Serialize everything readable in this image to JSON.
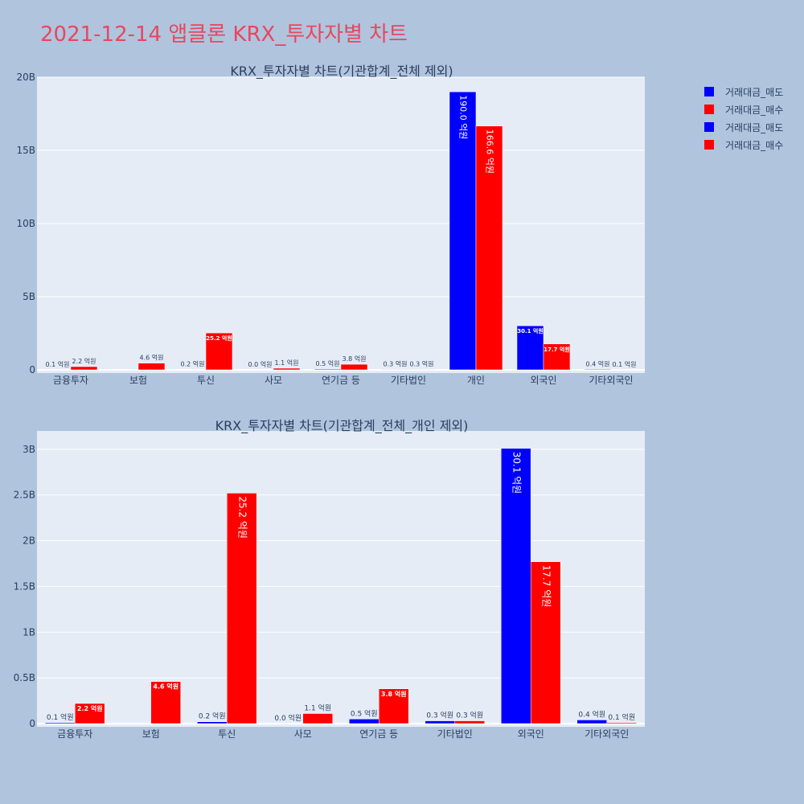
{
  "page": {
    "title": "2021-12-14 앱클론 KRX_투자자별 차트"
  },
  "colors": {
    "background": "#b0c4de",
    "plot_bg": "#e5ecf6",
    "grid": "#ffffff",
    "sell": "#0000ff",
    "buy": "#ff0000",
    "title": "#e8475f",
    "text": "#2a3f5f"
  },
  "legend": {
    "placement": "top-right",
    "items": [
      {
        "label": "거래대금_매도",
        "color": "#0000ff"
      },
      {
        "label": "거래대금_매수",
        "color": "#ff0000"
      },
      {
        "label": "거래대금_매도",
        "color": "#0000ff"
      },
      {
        "label": "거래대금_매수",
        "color": "#ff0000"
      }
    ]
  },
  "chart_data": [
    {
      "type": "bar",
      "title": "KRX_투자자별 차트(기관합계_전체 제외)",
      "categories": [
        "금융투자",
        "보험",
        "투신",
        "사모",
        "연기금 등",
        "기타법인",
        "개인",
        "외국인",
        "기타외국인"
      ],
      "ylim": [
        0,
        20000000000
      ],
      "ytick_values": [
        0,
        5000000000,
        10000000000,
        15000000000,
        20000000000
      ],
      "ytick_labels": [
        "0",
        "5B",
        "10B",
        "15B",
        "20B"
      ],
      "grid": true,
      "series": [
        {
          "name": "거래대금_매도",
          "color": "#0000ff",
          "values": [
            10000000,
            0,
            20000000,
            0,
            50000000,
            30000000,
            19000000000,
            3010000000,
            40000000
          ],
          "labels": [
            "0.1 억원",
            "",
            "0.2 억원",
            "0.0 억원",
            "0.5 억원",
            "0.3 억원",
            "190.0 억원",
            "30.1 억원",
            "0.4 억원"
          ]
        },
        {
          "name": "거래대금_매수",
          "color": "#ff0000",
          "values": [
            220000000,
            460000000,
            2520000000,
            110000000,
            380000000,
            30000000,
            16660000000,
            1770000000,
            10000000
          ],
          "labels": [
            "2.2 억원",
            "4.6 억원",
            "25.2 억원",
            "1.1 억원",
            "3.8 억원",
            "0.3 억원",
            "166.6 억원",
            "17.7 억원",
            "0.1 억원"
          ]
        }
      ]
    },
    {
      "type": "bar",
      "title": "KRX_투자자별 차트(기관합계_전체_개인 제외)",
      "categories": [
        "금융투자",
        "보험",
        "투신",
        "사모",
        "연기금 등",
        "기타법인",
        "외국인",
        "기타외국인"
      ],
      "ylim": [
        0,
        3200000000
      ],
      "ytick_values": [
        0,
        500000000,
        1000000000,
        1500000000,
        2000000000,
        2500000000,
        3000000000
      ],
      "ytick_labels": [
        "0",
        "0.5B",
        "1B",
        "1.5B",
        "2B",
        "2.5B",
        "3B"
      ],
      "grid": true,
      "series": [
        {
          "name": "거래대금_매도",
          "color": "#0000ff",
          "values": [
            10000000,
            0,
            20000000,
            0,
            50000000,
            30000000,
            3010000000,
            40000000
          ],
          "labels": [
            "0.1 억원",
            "",
            "0.2 억원",
            "0.0 억원",
            "0.5 억원",
            "0.3 억원",
            "30.1 억원",
            "0.4 억원"
          ]
        },
        {
          "name": "거래대금_매수",
          "color": "#ff0000",
          "values": [
            220000000,
            460000000,
            2520000000,
            110000000,
            380000000,
            30000000,
            1770000000,
            10000000
          ],
          "labels": [
            "2.2 억원",
            "4.6 억원",
            "25.2 억원",
            "1.1 억원",
            "3.8 억원",
            "0.3 억원",
            "17.7 억원",
            "0.1 억원"
          ]
        }
      ]
    }
  ]
}
